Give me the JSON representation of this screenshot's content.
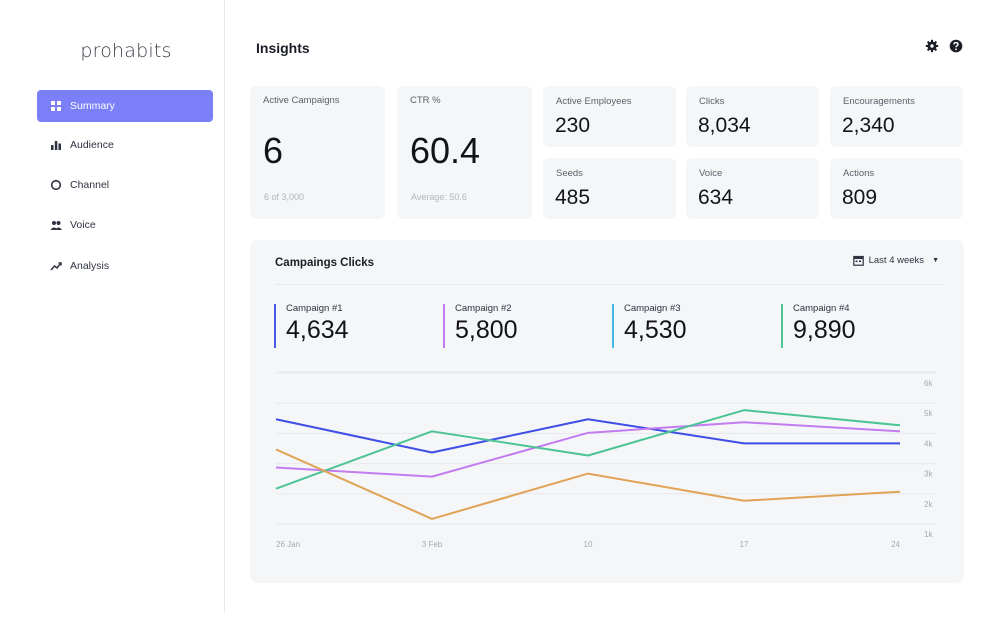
{
  "app": {
    "logo": "prohabits"
  },
  "sidebar": {
    "items": [
      {
        "label": "Summary",
        "icon": "grid-icon",
        "active": true
      },
      {
        "label": "Audience",
        "icon": "bar-chart-icon",
        "active": false
      },
      {
        "label": "Channel",
        "icon": "circle-icon",
        "active": false
      },
      {
        "label": "Voice",
        "icon": "people-icon",
        "active": false
      },
      {
        "label": "Analysis",
        "icon": "trend-icon",
        "active": false
      }
    ]
  },
  "header": {
    "title": "Insights",
    "icons": [
      "gear-icon",
      "help-icon"
    ]
  },
  "stats": {
    "active_campaigns": {
      "label": "Active Campaigns",
      "value": "6",
      "sub": "6 of 3,000"
    },
    "ctr": {
      "label": "CTR %",
      "value": "60.4",
      "sub": "Average: 50.6"
    },
    "active_employees": {
      "label": "Active Employees",
      "value": "230"
    },
    "clicks": {
      "label": "Clicks",
      "value": "8,034"
    },
    "encouragements": {
      "label": "Encouragements",
      "value": "2,340"
    },
    "seeds": {
      "label": "Seeds",
      "value": "485"
    },
    "voice": {
      "label": "Voice",
      "value": "634"
    },
    "actions": {
      "label": "Actions",
      "value": "809"
    }
  },
  "campaigns_panel": {
    "title": "Campaings Clicks",
    "range": {
      "selected": "Last 4 weeks"
    },
    "series": [
      {
        "label": "Campaign #1",
        "value": "4,634",
        "color": "#4a57e8"
      },
      {
        "label": "Campaign #2",
        "value": "5,800",
        "color": "#c27cf0"
      },
      {
        "label": "Campaign #3",
        "value": "4,530",
        "color": "#43b7ea"
      },
      {
        "label": "Campaign #4",
        "value": "9,890",
        "color": "#4cc494"
      }
    ]
  },
  "chart_data": {
    "type": "line",
    "x": [
      "26 Jan",
      "3 Feb",
      "10",
      "17",
      "24"
    ],
    "yticks": [
      "6k",
      "5k",
      "4k",
      "3k",
      "2k",
      "1k"
    ],
    "ylim": [
      1000,
      6000
    ],
    "grid": true,
    "series": [
      {
        "color": "#3f4ee6",
        "values": [
          4800,
          3700,
          4800,
          4000,
          4000
        ]
      },
      {
        "color": "#c27cf0",
        "values": [
          3200,
          2900,
          4350,
          4700,
          4400
        ]
      },
      {
        "color": "#4cc494",
        "values": [
          2500,
          4400,
          3600,
          5100,
          4600
        ]
      },
      {
        "color": "#e0a356",
        "values": [
          3800,
          1500,
          3000,
          2100,
          2400
        ]
      }
    ]
  }
}
